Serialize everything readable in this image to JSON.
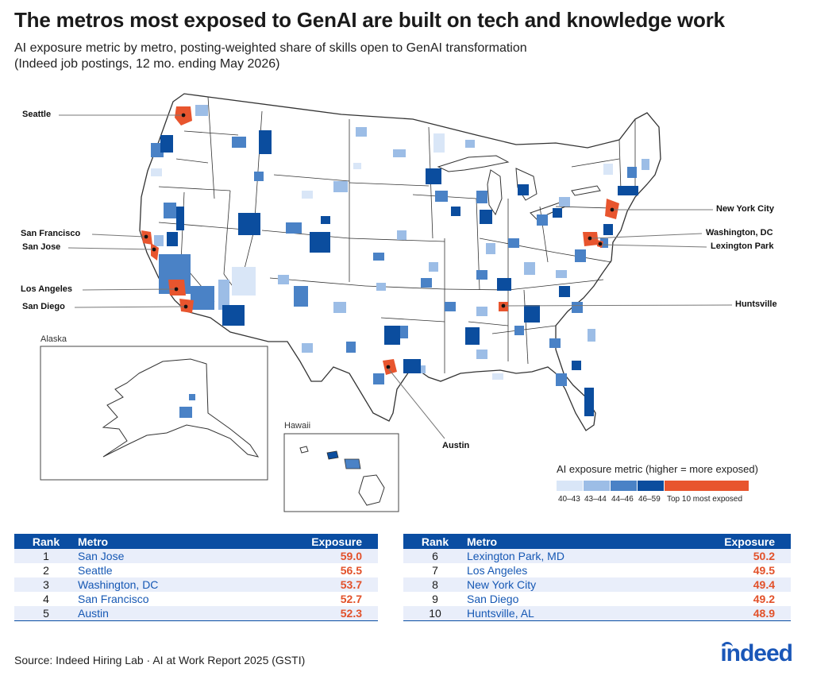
{
  "header": {
    "title": "The metros most exposed to GenAI are built on tech and knowledge work",
    "subtitle_line1": "AI exposure metric by metro, posting-weighted share of skills open to GenAI transformation",
    "subtitle_line2": "(Indeed job postings, 12 mo. ending May 2026)"
  },
  "map": {
    "insets": {
      "alaska": "Alaska",
      "hawaii": "Hawaii"
    },
    "callouts": [
      "Seattle",
      "San Francisco",
      "San Jose",
      "Los Angeles",
      "San Diego",
      "Austin",
      "New York City",
      "Washington, DC",
      "Lexington Park",
      "Huntsville"
    ],
    "colors": {
      "bin1": "#d9e6f7",
      "bin2": "#9cbde6",
      "bin3": "#4a82c6",
      "bin4": "#0b4d9e",
      "top10": "#e8552e",
      "outline": "#333333"
    }
  },
  "legend": {
    "title": "AI exposure metric (higher = more exposed)",
    "bins": [
      {
        "label": "40–43",
        "color": "#d9e6f7"
      },
      {
        "label": "43–44",
        "color": "#9cbde6"
      },
      {
        "label": "44–46",
        "color": "#4a82c6"
      },
      {
        "label": "46–59",
        "color": "#0b4d9e"
      },
      {
        "label": "Top 10 most exposed",
        "color": "#e8552e"
      }
    ]
  },
  "table_headers": {
    "rank": "Rank",
    "metro": "Metro",
    "exposure": "Exposure"
  },
  "table_left": [
    {
      "rank": "1",
      "metro": "San Jose",
      "exposure": "59.0"
    },
    {
      "rank": "2",
      "metro": "Seattle",
      "exposure": "56.5"
    },
    {
      "rank": "3",
      "metro": "Washington, DC",
      "exposure": "53.7"
    },
    {
      "rank": "4",
      "metro": "San Francisco",
      "exposure": "52.7"
    },
    {
      "rank": "5",
      "metro": "Austin",
      "exposure": "52.3"
    }
  ],
  "table_right": [
    {
      "rank": "6",
      "metro": "Lexington Park, MD",
      "exposure": "50.2"
    },
    {
      "rank": "7",
      "metro": "Los Angeles",
      "exposure": "49.5"
    },
    {
      "rank": "8",
      "metro": "New York City",
      "exposure": "49.4"
    },
    {
      "rank": "9",
      "metro": "San Diego",
      "exposure": "49.2"
    },
    {
      "rank": "10",
      "metro": "Huntsville, AL",
      "exposure": "48.9"
    }
  ],
  "footer": {
    "source": "Source: Indeed Hiring Lab · AI at Work Report 2025 (GSTI)",
    "logo": "indeed"
  }
}
